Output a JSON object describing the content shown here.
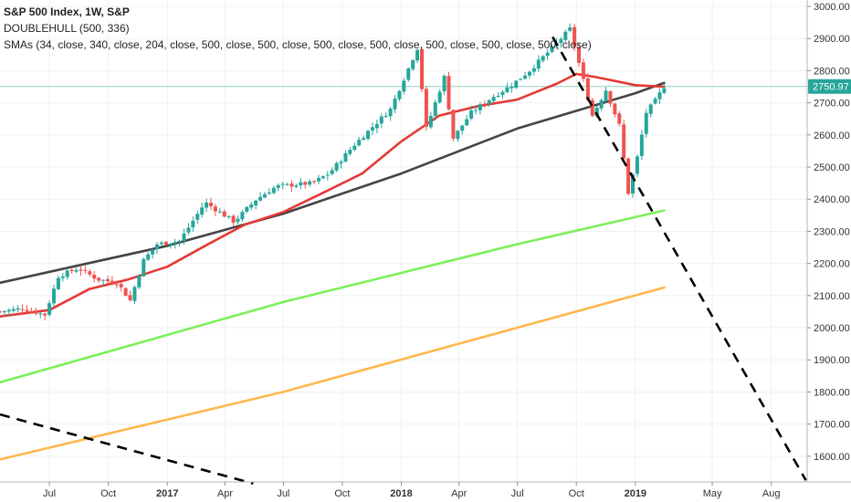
{
  "chart_data": {
    "type": "candlestick",
    "title": "S&P 500 Index, 1W, S&P",
    "indicators": [
      "DOUBLEHULL (500, 336)",
      "SMAs (34, close, 340, close, 204, close, 500, close, 500, close, 500, close, 500, close, 500, close, 500, close, 500, close)"
    ],
    "last_price": "2750.97",
    "ylim": [
      1520,
      3020
    ],
    "y_ticks": [
      {
        "value": 3000,
        "label": "3000.00"
      },
      {
        "value": 2900,
        "label": "2900.00"
      },
      {
        "value": 2800,
        "label": "2800.00"
      },
      {
        "value": 2700,
        "label": "2700.00"
      },
      {
        "value": 2600,
        "label": "2600.00"
      },
      {
        "value": 2500,
        "label": "2500.00"
      },
      {
        "value": 2400,
        "label": "2400.00"
      },
      {
        "value": 2300,
        "label": "2300.00"
      },
      {
        "value": 2200,
        "label": "2200.00"
      },
      {
        "value": 2100,
        "label": "2100.00"
      },
      {
        "value": 2000,
        "label": "2000.00"
      },
      {
        "value": 1900,
        "label": "1900.00"
      },
      {
        "value": 1800,
        "label": "1800.00"
      },
      {
        "value": 1700,
        "label": "1700.00"
      },
      {
        "value": 1600,
        "label": "1600.00"
      }
    ],
    "x_ticks": [
      {
        "label": "Jul",
        "date": "2016-07-01",
        "bold": false
      },
      {
        "label": "Oct",
        "date": "2016-10-01",
        "bold": false
      },
      {
        "label": "2017",
        "date": "2017-01-01",
        "bold": true
      },
      {
        "label": "Apr",
        "date": "2017-04-01",
        "bold": false
      },
      {
        "label": "Jul",
        "date": "2017-07-01",
        "bold": false
      },
      {
        "label": "Oct",
        "date": "2017-10-01",
        "bold": false
      },
      {
        "label": "2018",
        "date": "2018-01-01",
        "bold": true
      },
      {
        "label": "Apr",
        "date": "2018-04-01",
        "bold": false
      },
      {
        "label": "Jul",
        "date": "2018-07-01",
        "bold": false
      },
      {
        "label": "Oct",
        "date": "2018-10-01",
        "bold": false
      },
      {
        "label": "2019",
        "date": "2019-01-01",
        "bold": true
      },
      {
        "label": "May",
        "date": "2019-05-01",
        "bold": false
      },
      {
        "label": "Aug",
        "date": "2019-08-01",
        "bold": false
      }
    ],
    "xlim": [
      "2016-04-15",
      "2019-09-26"
    ],
    "grid": true,
    "colors": {
      "up": "#26a69a",
      "down": "#ef5350",
      "sma_red": "#e53935",
      "sma_black": "#444444",
      "sma_green": "#7cf05a",
      "sma_orange": "#ffb74d",
      "trend": "#000000",
      "price_badge": "#26a69a"
    },
    "price_path": [
      [
        "2016-04-15",
        2050
      ],
      [
        "2016-05-20",
        2060
      ],
      [
        "2016-06-24",
        2040
      ],
      [
        "2016-07-15",
        2160
      ],
      [
        "2016-08-15",
        2185
      ],
      [
        "2016-09-15",
        2150
      ],
      [
        "2016-10-15",
        2140
      ],
      [
        "2016-11-04",
        2085
      ],
      [
        "2016-11-25",
        2210
      ],
      [
        "2016-12-16",
        2260
      ],
      [
        "2017-01-20",
        2270
      ],
      [
        "2017-03-01",
        2390
      ],
      [
        "2017-04-15",
        2330
      ],
      [
        "2017-05-20",
        2400
      ],
      [
        "2017-06-20",
        2440
      ],
      [
        "2017-08-15",
        2450
      ],
      [
        "2017-09-10",
        2480
      ],
      [
        "2017-10-20",
        2570
      ],
      [
        "2017-12-15",
        2680
      ],
      [
        "2018-01-26",
        2870
      ],
      [
        "2018-02-09",
        2620
      ],
      [
        "2018-03-09",
        2780
      ],
      [
        "2018-03-23",
        2590
      ],
      [
        "2018-04-20",
        2670
      ],
      [
        "2018-05-25",
        2720
      ],
      [
        "2018-06-22",
        2755
      ],
      [
        "2018-07-20",
        2800
      ],
      [
        "2018-08-24",
        2870
      ],
      [
        "2018-09-21",
        2930
      ],
      [
        "2018-10-12",
        2770
      ],
      [
        "2018-10-26",
        2660
      ],
      [
        "2018-11-16",
        2740
      ],
      [
        "2018-12-07",
        2630
      ],
      [
        "2018-12-21",
        2420
      ],
      [
        "2019-01-04",
        2530
      ],
      [
        "2019-01-18",
        2670
      ],
      [
        "2019-02-01",
        2706
      ],
      [
        "2019-02-15",
        2751
      ]
    ],
    "sma_red": [
      [
        "2016-04-15",
        2035
      ],
      [
        "2016-07-01",
        2055
      ],
      [
        "2016-09-01",
        2120
      ],
      [
        "2016-11-01",
        2150
      ],
      [
        "2017-01-01",
        2190
      ],
      [
        "2017-03-01",
        2255
      ],
      [
        "2017-05-01",
        2320
      ],
      [
        "2017-07-01",
        2360
      ],
      [
        "2017-09-01",
        2420
      ],
      [
        "2017-11-01",
        2480
      ],
      [
        "2018-01-01",
        2580
      ],
      [
        "2018-03-01",
        2660
      ],
      [
        "2018-05-01",
        2690
      ],
      [
        "2018-07-01",
        2710
      ],
      [
        "2018-09-01",
        2760
      ],
      [
        "2018-10-01",
        2790
      ],
      [
        "2018-11-01",
        2780
      ],
      [
        "2019-01-01",
        2755
      ],
      [
        "2019-02-15",
        2750
      ]
    ],
    "sma_black": [
      [
        "2016-04-15",
        2140
      ],
      [
        "2017-01-01",
        2255
      ],
      [
        "2017-07-01",
        2355
      ],
      [
        "2018-01-01",
        2480
      ],
      [
        "2018-07-01",
        2620
      ],
      [
        "2019-01-01",
        2730
      ],
      [
        "2019-02-15",
        2762
      ]
    ],
    "sma_green": [
      [
        "2016-04-15",
        1830
      ],
      [
        "2017-07-01",
        2080
      ],
      [
        "2018-07-01",
        2260
      ],
      [
        "2019-02-15",
        2365
      ]
    ],
    "sma_orange": [
      [
        "2016-04-15",
        1590
      ],
      [
        "2017-07-01",
        1800
      ],
      [
        "2018-07-01",
        2000
      ],
      [
        "2019-02-15",
        2125
      ]
    ],
    "trend_lines": [
      {
        "from": [
          "2016-04-15",
          1730
        ],
        "to": [
          "2017-05-15",
          1515
        ]
      },
      {
        "from": [
          "2018-08-25",
          2905
        ],
        "to": [
          "2019-09-24",
          1525
        ]
      }
    ]
  }
}
